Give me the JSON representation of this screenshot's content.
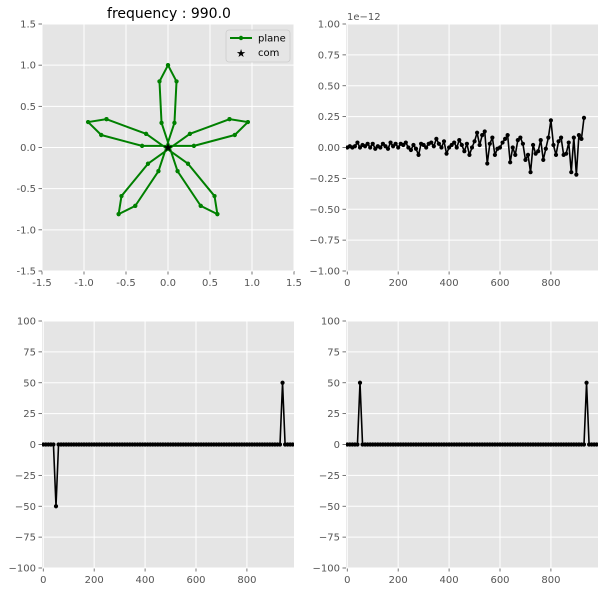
{
  "figure": {
    "background": "#ffffff",
    "axes_facecolor": "#e5e5e5",
    "grid_color": "#ffffff",
    "tick_label_color": "#555555",
    "title_color": "#000000"
  },
  "chart_data": [
    {
      "id": "ax-top-left",
      "type": "line",
      "title": "frequency : 990.0",
      "xlim": [
        -1.5,
        1.5
      ],
      "ylim": [
        -1.5,
        1.5
      ],
      "xticks": [
        "-1.5",
        "-1.0",
        "-0.5",
        "0.0",
        "0.5",
        "1.0",
        "1.5"
      ],
      "yticks": [
        "-1.5",
        "-1.0",
        "-0.5",
        "0.0",
        "0.5",
        "1.0",
        "1.5"
      ],
      "grid": true,
      "legend": {
        "placement": "top-right",
        "entries": [
          {
            "label": "plane",
            "color": "#008000",
            "marker": "dot-line"
          },
          {
            "label": "com",
            "color": "#000000",
            "marker": "star"
          }
        ]
      },
      "series": [
        {
          "name": "plane",
          "color": "#008000",
          "curve": "rose",
          "petals": 5,
          "amplitude": 1.0,
          "points": 50
        },
        {
          "name": "com",
          "color": "#000000",
          "x": [
            0.0
          ],
          "y": [
            0.0
          ]
        }
      ]
    },
    {
      "id": "ax-top-right",
      "type": "line",
      "title": "",
      "offset_text": "1e−12",
      "xlim": [
        -5,
        985
      ],
      "ylim": [
        -1.0,
        1.0
      ],
      "xticks": [
        "0",
        "200",
        "400",
        "600",
        "800"
      ],
      "yticks": [
        "−1.00",
        "−0.75",
        "−0.50",
        "−0.25",
        "0.00",
        "0.25",
        "0.50",
        "0.75",
        "1.00"
      ],
      "grid": true,
      "series": [
        {
          "name": "",
          "color": "#000000",
          "x_start": 0,
          "x_step": 10,
          "values": [
            0.0,
            0.01,
            0.0,
            0.01,
            0.04,
            0.0,
            0.02,
            0.01,
            0.03,
            0.0,
            0.03,
            -0.01,
            0.01,
            0.0,
            0.03,
            0.01,
            -0.01,
            0.04,
            0.01,
            0.03,
            0.0,
            0.03,
            0.02,
            0.04,
            0.0,
            -0.02,
            0.02,
            -0.01,
            -0.06,
            0.03,
            0.02,
            0.0,
            0.03,
            0.04,
            0.01,
            0.07,
            0.03,
            0.0,
            0.05,
            -0.05,
            0.0,
            0.02,
            0.04,
            0.0,
            0.06,
            0.02,
            -0.03,
            0.03,
            -0.06,
            0.0,
            0.05,
            0.12,
            0.02,
            0.1,
            0.13,
            -0.13,
            0.03,
            0.08,
            -0.06,
            -0.01,
            0.0,
            0.04,
            0.07,
            0.1,
            -0.12,
            0.0,
            -0.06,
            0.06,
            0.08,
            0.03,
            -0.1,
            -0.06,
            -0.2,
            0.02,
            -0.05,
            -0.03,
            0.06,
            -0.1,
            -0.01,
            0.08,
            0.22,
            0.02,
            -0.06,
            0.05,
            0.08,
            -0.06,
            -0.05,
            0.04,
            -0.2,
            0.08,
            -0.22,
            0.1,
            0.07,
            0.24
          ]
        }
      ]
    },
    {
      "id": "ax-bottom-left",
      "type": "line",
      "title": "",
      "xlim": [
        -5,
        985
      ],
      "ylim": [
        -100,
        100
      ],
      "xticks": [
        "0",
        "200",
        "400",
        "600",
        "800"
      ],
      "yticks": [
        "−100",
        "−75",
        "−50",
        "−25",
        "0",
        "25",
        "50",
        "75",
        "100"
      ],
      "grid": true,
      "series": [
        {
          "name": "",
          "color": "#000000",
          "x_start": 0,
          "x_step": 10,
          "zero_count": 99,
          "spikes": [
            {
              "index": 5,
              "value": -50
            },
            {
              "index": 94,
              "value": 50
            }
          ]
        }
      ]
    },
    {
      "id": "ax-bottom-right",
      "type": "line",
      "title": "",
      "xlim": [
        -5,
        985
      ],
      "ylim": [
        -100,
        100
      ],
      "xticks": [
        "0",
        "200",
        "400",
        "600",
        "800"
      ],
      "yticks": [
        "−100",
        "−75",
        "−50",
        "−25",
        "0",
        "25",
        "50",
        "75",
        "100"
      ],
      "grid": true,
      "series": [
        {
          "name": "",
          "color": "#000000",
          "x_start": 0,
          "x_step": 10,
          "zero_count": 99,
          "spikes": [
            {
              "index": 5,
              "value": 50
            },
            {
              "index": 94,
              "value": 50
            }
          ]
        }
      ]
    }
  ]
}
